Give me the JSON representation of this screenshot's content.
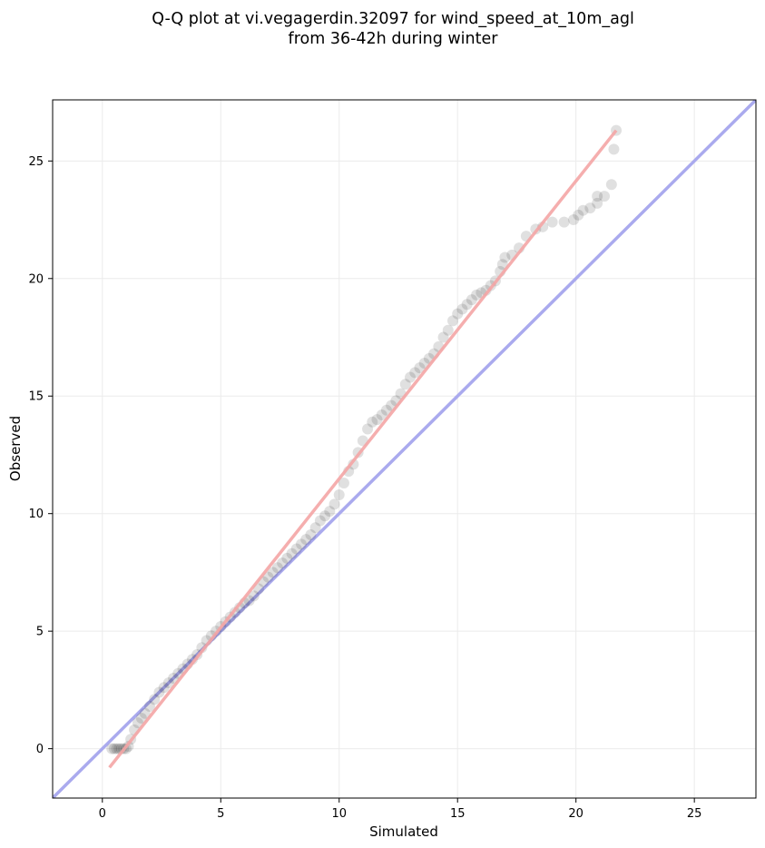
{
  "chart_data": {
    "type": "scatter",
    "title_line1": "Q-Q plot at vi.vegagerdin.32097 for wind_speed_at_10m_agl",
    "title_line2": "from 36-42h during winter",
    "xlabel": "Simulated",
    "ylabel": "Observed",
    "xlim": [
      -2.1,
      27.6
    ],
    "ylim": [
      -2.1,
      27.6
    ],
    "xticks": [
      0,
      5,
      10,
      15,
      20,
      25
    ],
    "yticks": [
      0,
      5,
      10,
      15,
      20,
      25
    ],
    "grid": true,
    "reference_line": {
      "slope": 1,
      "intercept": 0,
      "color": "#aaaaee"
    },
    "fit_line": {
      "x": [
        0.3,
        21.7
      ],
      "y": [
        -0.8,
        26.3
      ],
      "color": "#f4a5a5"
    },
    "points_color": "#000000",
    "points": [
      [
        0.4,
        0.0
      ],
      [
        0.5,
        0.0
      ],
      [
        0.6,
        0.0
      ],
      [
        0.7,
        0.0
      ],
      [
        0.8,
        0.0
      ],
      [
        0.9,
        0.0
      ],
      [
        1.0,
        0.0
      ],
      [
        1.1,
        0.1
      ],
      [
        1.2,
        0.4
      ],
      [
        1.35,
        0.8
      ],
      [
        1.5,
        1.1
      ],
      [
        1.65,
        1.3
      ],
      [
        1.8,
        1.5
      ],
      [
        2.0,
        1.8
      ],
      [
        2.2,
        2.1
      ],
      [
        2.4,
        2.4
      ],
      [
        2.6,
        2.6
      ],
      [
        2.8,
        2.8
      ],
      [
        3.0,
        3.0
      ],
      [
        3.2,
        3.2
      ],
      [
        3.4,
        3.4
      ],
      [
        3.6,
        3.6
      ],
      [
        3.8,
        3.8
      ],
      [
        4.0,
        4.0
      ],
      [
        4.2,
        4.3
      ],
      [
        4.4,
        4.6
      ],
      [
        4.6,
        4.8
      ],
      [
        4.8,
        5.0
      ],
      [
        5.0,
        5.2
      ],
      [
        5.2,
        5.4
      ],
      [
        5.4,
        5.6
      ],
      [
        5.6,
        5.8
      ],
      [
        5.8,
        6.0
      ],
      [
        6.0,
        6.2
      ],
      [
        6.2,
        6.3
      ],
      [
        6.4,
        6.5
      ],
      [
        6.6,
        6.8
      ],
      [
        6.8,
        7.1
      ],
      [
        7.0,
        7.3
      ],
      [
        7.2,
        7.5
      ],
      [
        7.4,
        7.7
      ],
      [
        7.6,
        7.9
      ],
      [
        7.8,
        8.1
      ],
      [
        8.0,
        8.3
      ],
      [
        8.2,
        8.5
      ],
      [
        8.4,
        8.7
      ],
      [
        8.6,
        8.9
      ],
      [
        8.8,
        9.1
      ],
      [
        9.0,
        9.4
      ],
      [
        9.2,
        9.7
      ],
      [
        9.4,
        9.9
      ],
      [
        9.6,
        10.1
      ],
      [
        9.8,
        10.4
      ],
      [
        10.0,
        10.8
      ],
      [
        10.2,
        11.3
      ],
      [
        10.4,
        11.8
      ],
      [
        10.6,
        12.1
      ],
      [
        10.8,
        12.6
      ],
      [
        11.0,
        13.1
      ],
      [
        11.2,
        13.6
      ],
      [
        11.4,
        13.9
      ],
      [
        11.6,
        14.0
      ],
      [
        11.8,
        14.2
      ],
      [
        12.0,
        14.4
      ],
      [
        12.2,
        14.6
      ],
      [
        12.4,
        14.8
      ],
      [
        12.6,
        15.1
      ],
      [
        12.8,
        15.5
      ],
      [
        13.0,
        15.8
      ],
      [
        13.2,
        16.0
      ],
      [
        13.4,
        16.2
      ],
      [
        13.6,
        16.4
      ],
      [
        13.8,
        16.6
      ],
      [
        14.0,
        16.8
      ],
      [
        14.2,
        17.1
      ],
      [
        14.4,
        17.5
      ],
      [
        14.6,
        17.8
      ],
      [
        14.8,
        18.2
      ],
      [
        15.0,
        18.5
      ],
      [
        15.2,
        18.7
      ],
      [
        15.4,
        18.9
      ],
      [
        15.6,
        19.1
      ],
      [
        15.8,
        19.3
      ],
      [
        16.0,
        19.4
      ],
      [
        16.2,
        19.5
      ],
      [
        16.4,
        19.7
      ],
      [
        16.6,
        19.9
      ],
      [
        16.8,
        20.3
      ],
      [
        16.9,
        20.6
      ],
      [
        17.0,
        20.9
      ],
      [
        17.3,
        21.0
      ],
      [
        17.6,
        21.3
      ],
      [
        17.9,
        21.8
      ],
      [
        18.3,
        22.1
      ],
      [
        18.6,
        22.2
      ],
      [
        19.0,
        22.4
      ],
      [
        19.5,
        22.4
      ],
      [
        19.9,
        22.5
      ],
      [
        20.1,
        22.7
      ],
      [
        20.3,
        22.9
      ],
      [
        20.6,
        23.0
      ],
      [
        20.9,
        23.2
      ],
      [
        20.9,
        23.5
      ],
      [
        21.2,
        23.5
      ],
      [
        21.5,
        24.0
      ],
      [
        21.6,
        25.5
      ],
      [
        21.7,
        26.3
      ]
    ]
  }
}
